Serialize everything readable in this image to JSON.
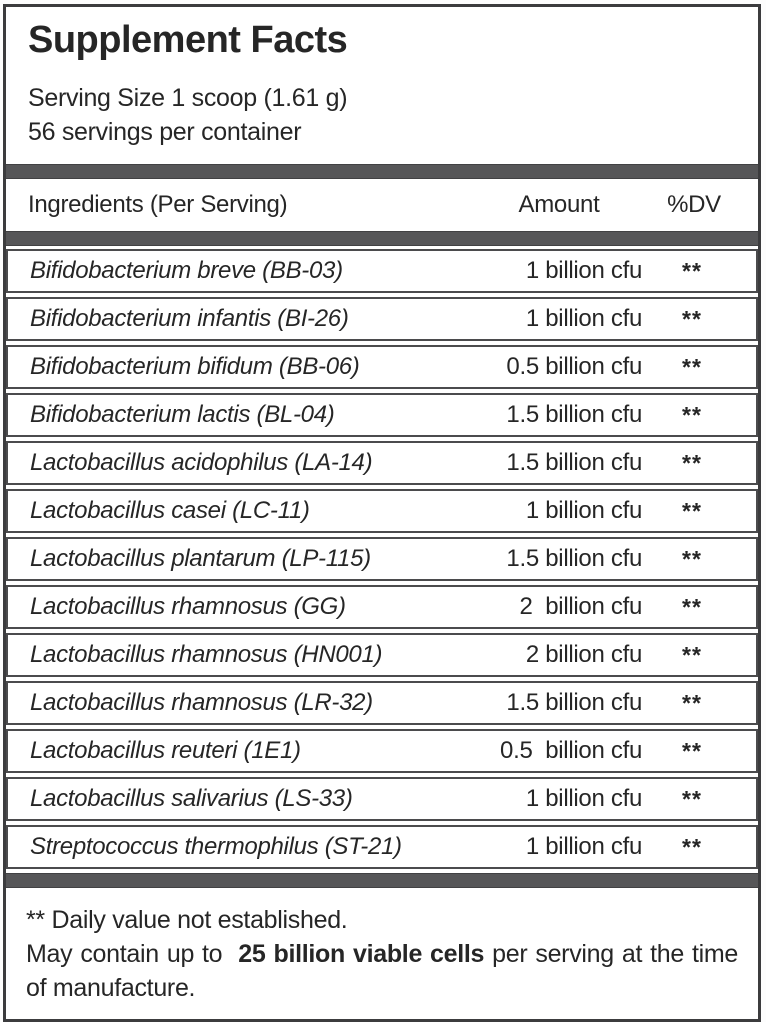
{
  "label": {
    "title": "Supplement Facts",
    "serving_size": "Serving Size 1 scoop (1.61 g)",
    "servings_per_container": "56 servings per container",
    "columns": {
      "ingredient": "Ingredients (Per Serving)",
      "amount": "Amount",
      "dv": "%DV"
    },
    "rows": [
      {
        "name": "Bifidobacterium breve (BB-03)",
        "amount": "1 billion cfu",
        "dv": "**"
      },
      {
        "name": "Bifidobacterium infantis (BI-26)",
        "amount": "1 billion cfu",
        "dv": "**"
      },
      {
        "name": "Bifidobacterium bifidum (BB-06)",
        "amount": "0.5 billion cfu",
        "dv": "**"
      },
      {
        "name": "Bifidobacterium lactis (BL-04)",
        "amount": "1.5 billion cfu",
        "dv": "**"
      },
      {
        "name": "Lactobacillus acidophilus (LA-14)",
        "amount": "1.5 billion cfu",
        "dv": "**"
      },
      {
        "name": "Lactobacillus casei (LC-11)",
        "amount": "1 billion cfu",
        "dv": "**"
      },
      {
        "name": "Lactobacillus plantarum (LP-115)",
        "amount": "1.5 billion cfu",
        "dv": "**"
      },
      {
        "name": "Lactobacillus rhamnosus (GG)",
        "amount": "2  billion cfu",
        "dv": "**"
      },
      {
        "name": "Lactobacillus rhamnosus (HN001)",
        "amount": "2 billion cfu",
        "dv": "**"
      },
      {
        "name": "Lactobacillus rhamnosus (LR-32)",
        "amount": "1.5 billion cfu",
        "dv": "**"
      },
      {
        "name": "Lactobacillus reuteri (1E1)",
        "amount": "0.5  billion cfu",
        "dv": "**"
      },
      {
        "name": "Lactobacillus salivarius (LS-33)",
        "amount": "1 billion cfu",
        "dv": "**"
      },
      {
        "name": "Streptococcus thermophilus (ST-21)",
        "amount": "1 billion cfu",
        "dv": "**"
      }
    ],
    "footnotes": {
      "dv_note": "** Daily value not established.",
      "may_contain_prefix": "May contain up to  ",
      "may_contain_bold": "25 billion viable cells",
      "may_contain_suffix": " per serving at the time of manufacture."
    },
    "colors": {
      "bar": "#565658",
      "outer_border": "#3c3c3e",
      "row_border": "#4b4b4d",
      "text": "#262626"
    }
  }
}
